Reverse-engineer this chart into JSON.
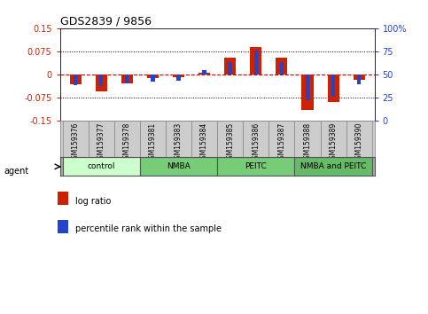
{
  "title": "GDS2839 / 9856",
  "samples": [
    "GSM159376",
    "GSM159377",
    "GSM159378",
    "GSM159381",
    "GSM159383",
    "GSM159384",
    "GSM159385",
    "GSM159386",
    "GSM159387",
    "GSM159388",
    "GSM159389",
    "GSM159390"
  ],
  "log_ratio": [
    -0.032,
    -0.055,
    -0.03,
    -0.012,
    -0.008,
    0.004,
    0.055,
    0.09,
    0.055,
    -0.115,
    -0.09,
    -0.018
  ],
  "percentile_rank": [
    38,
    37,
    40,
    42,
    43,
    55,
    63,
    76,
    63,
    22,
    26,
    39
  ],
  "ylim": [
    -0.15,
    0.15
  ],
  "yticks_left": [
    -0.15,
    -0.075,
    0,
    0.075,
    0.15
  ],
  "yticks_right": [
    0,
    25,
    50,
    75,
    100
  ],
  "groups": [
    {
      "label": "control",
      "start": 0,
      "end": 3
    },
    {
      "label": "NMBA",
      "start": 3,
      "end": 6
    },
    {
      "label": "PEITC",
      "start": 6,
      "end": 9
    },
    {
      "label": "NMBA and PEITC",
      "start": 9,
      "end": 12
    }
  ],
  "group_colors": [
    "#ccffcc",
    "#77cc77",
    "#77cc77",
    "#66bb66"
  ],
  "bar_color_red": "#cc2200",
  "bar_color_blue": "#2244cc",
  "zero_line_color": "#cc0000",
  "dotted_line_color": "#000000",
  "bg_color": "#ffffff",
  "plot_bg_color": "#ffffff",
  "tick_label_color_left": "#cc2200",
  "tick_label_color_right": "#2244cc",
  "legend_red_label": "log ratio",
  "legend_blue_label": "percentile rank within the sample",
  "red_bar_width": 0.45,
  "blue_bar_width": 0.15,
  "agent_label": "agent",
  "sample_cell_color": "#cccccc",
  "sample_cell_edge": "#888888"
}
